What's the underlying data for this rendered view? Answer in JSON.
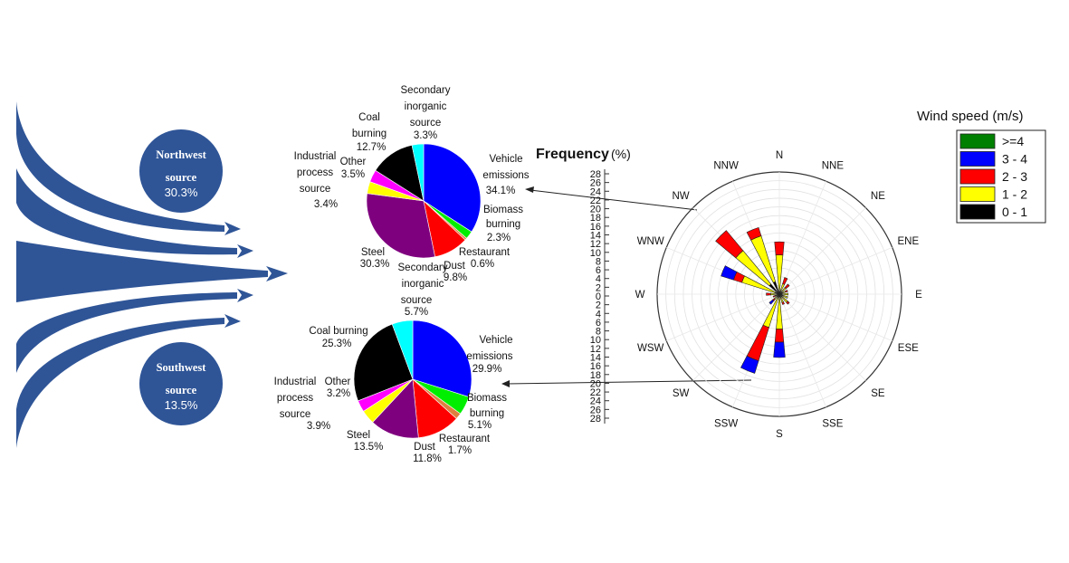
{
  "sources": {
    "northwest": {
      "title": "Northwest",
      "subtitle": "source",
      "value": "30.3%"
    },
    "southwest": {
      "title": "Southwest",
      "subtitle": "source",
      "value": "13.5%"
    }
  },
  "chart_data": [
    {
      "type": "pie",
      "name": "northwest-pie",
      "slices": [
        {
          "label": "Vehicle emissions",
          "value": 34.1,
          "color": "#0000ff"
        },
        {
          "label": "Biomass burning",
          "value": 2.3,
          "color": "#00ee00"
        },
        {
          "label": "Restaurant",
          "value": 0.6,
          "color": "#e08040"
        },
        {
          "label": "Dust",
          "value": 9.8,
          "color": "#ff0000"
        },
        {
          "label": "Steel",
          "value": 30.3,
          "color": "#7f007f"
        },
        {
          "label": "Industrial process source",
          "value": 3.4,
          "color": "#ffff00"
        },
        {
          "label": "Other",
          "value": 3.5,
          "color": "#ff00ff"
        },
        {
          "label": "Coal burning",
          "value": 12.7,
          "color": "#000000"
        },
        {
          "label": "Secondary inorganic source",
          "value": 3.3,
          "color": "#00ffff"
        }
      ],
      "labels": {
        "vehicle": [
          "Vehicle",
          "emissions",
          "34.1%"
        ],
        "biomass": [
          "Biomass",
          "burning",
          "2.3%"
        ],
        "restaurant": [
          "Restaurant",
          "0.6%"
        ],
        "dust": [
          "Dust",
          "9.8%"
        ],
        "steel": [
          "Steel",
          "30.3%"
        ],
        "industrial": [
          "Industrial",
          "process",
          "source",
          "3.4%"
        ],
        "other": [
          "Other",
          "3.5%"
        ],
        "coal": [
          "Coal",
          "burning",
          "12.7%"
        ],
        "secondary": [
          "Secondary",
          "inorganic",
          "source",
          "3.3%"
        ]
      }
    },
    {
      "type": "pie",
      "name": "southwest-pie",
      "slices": [
        {
          "label": "Vehicle emissions",
          "value": 29.9,
          "color": "#0000ff"
        },
        {
          "label": "Biomass burning",
          "value": 5.1,
          "color": "#00ee00"
        },
        {
          "label": "Restaurant",
          "value": 1.7,
          "color": "#e08040"
        },
        {
          "label": "Dust",
          "value": 11.8,
          "color": "#ff0000"
        },
        {
          "label": "Steel",
          "value": 13.5,
          "color": "#7f007f"
        },
        {
          "label": "Industrial process source",
          "value": 3.9,
          "color": "#ffff00"
        },
        {
          "label": "Other",
          "value": 3.2,
          "color": "#ff00ff"
        },
        {
          "label": "Coal burning",
          "value": 25.3,
          "color": "#000000"
        },
        {
          "label": "Secondary inorganic source",
          "value": 5.7,
          "color": "#00ffff"
        }
      ],
      "labels": {
        "vehicle": [
          "Vehicle",
          "emissions",
          "29.9%"
        ],
        "biomass": [
          "Biomass",
          "burning",
          "5.1%"
        ],
        "restaurant": [
          "Restaurant",
          "1.7%"
        ],
        "dust": [
          "Dust",
          "11.8%"
        ],
        "steel": [
          "Steel",
          "13.5%"
        ],
        "industrial": [
          "Industrial",
          "process",
          "source",
          "3.9%"
        ],
        "other": [
          "Other",
          "3.2%"
        ],
        "coal": [
          "Coal burning",
          "25.3%"
        ],
        "secondary": [
          "Secondary",
          "inorganic",
          "source",
          "5.7%"
        ]
      }
    },
    {
      "type": "wind-rose",
      "name": "wind-rose",
      "axis_title": "Frequency",
      "axis_unit": "(%)",
      "ylim": [
        0,
        28
      ],
      "ticks": [
        28,
        26,
        24,
        22,
        20,
        18,
        16,
        14,
        12,
        10,
        8,
        6,
        4,
        2,
        0,
        2,
        4,
        6,
        8,
        10,
        12,
        14,
        16,
        18,
        20,
        22,
        24,
        26,
        28
      ],
      "directions": [
        "N",
        "NNE",
        "NE",
        "ENE",
        "E",
        "ESE",
        "SE",
        "SSE",
        "S",
        "SSW",
        "SW",
        "WSW",
        "W",
        "WNW",
        "NW",
        "NNW"
      ],
      "legend_title": "Wind speed (m/s)",
      "bins": [
        {
          "label": ">=4",
          "color": "#008000"
        },
        {
          "label": "3 - 4",
          "color": "#0000ff"
        },
        {
          "label": "2 - 3",
          "color": "#ff0000"
        },
        {
          "label": "1 - 2",
          "color": "#ffff00"
        },
        {
          "label": "0 - 1",
          "color": "#000000"
        }
      ],
      "frequency_by_direction": {
        "N": [
          0,
          0,
          0,
          0,
          0,
          0,
          0,
          0,
          0.2,
          2.5,
          9,
          12,
          0,
          0,
          0,
          0,
          0,
          0,
          0,
          0,
          0,
          0,
          0,
          0,
          0,
          0
        ],
        "stacks": {
          "N": [
            0.2,
            9,
            12,
            0,
            0
          ],
          "NNE": [
            0.2,
            2.5,
            4,
            0,
            0
          ],
          "NE": [
            0.3,
            2,
            3,
            0,
            0
          ],
          "ENE": [
            0.2,
            1.5,
            2,
            0,
            0
          ],
          "E": [
            0.3,
            2,
            2,
            0,
            0
          ],
          "ESE": [
            0.2,
            2,
            2,
            0,
            0
          ],
          "SE": [
            0.2,
            2.5,
            3,
            0,
            0
          ],
          "SSE": [
            0.2,
            2,
            2.5,
            0,
            0
          ],
          "S": [
            0.3,
            8,
            11,
            14.5,
            0
          ],
          "SSW": [
            0.5,
            8,
            16,
            19,
            0
          ],
          "SW": [
            0.3,
            1.5,
            2,
            3,
            0
          ],
          "WSW": [
            0.2,
            1,
            1.5,
            0,
            0
          ],
          "W": [
            0.3,
            2,
            3,
            0,
            0
          ],
          "WNW": [
            1,
            9,
            11,
            14,
            0
          ],
          "NW": [
            3,
            13,
            19,
            0,
            0
          ],
          "NNW": [
            3,
            14,
            16,
            0,
            0
          ]
        },
        "stack_order_note": "cumulative frequency (%) at the top of each speed band: 0-1, 1-2, 2-3, 3-4, >=4"
      }
    }
  ]
}
